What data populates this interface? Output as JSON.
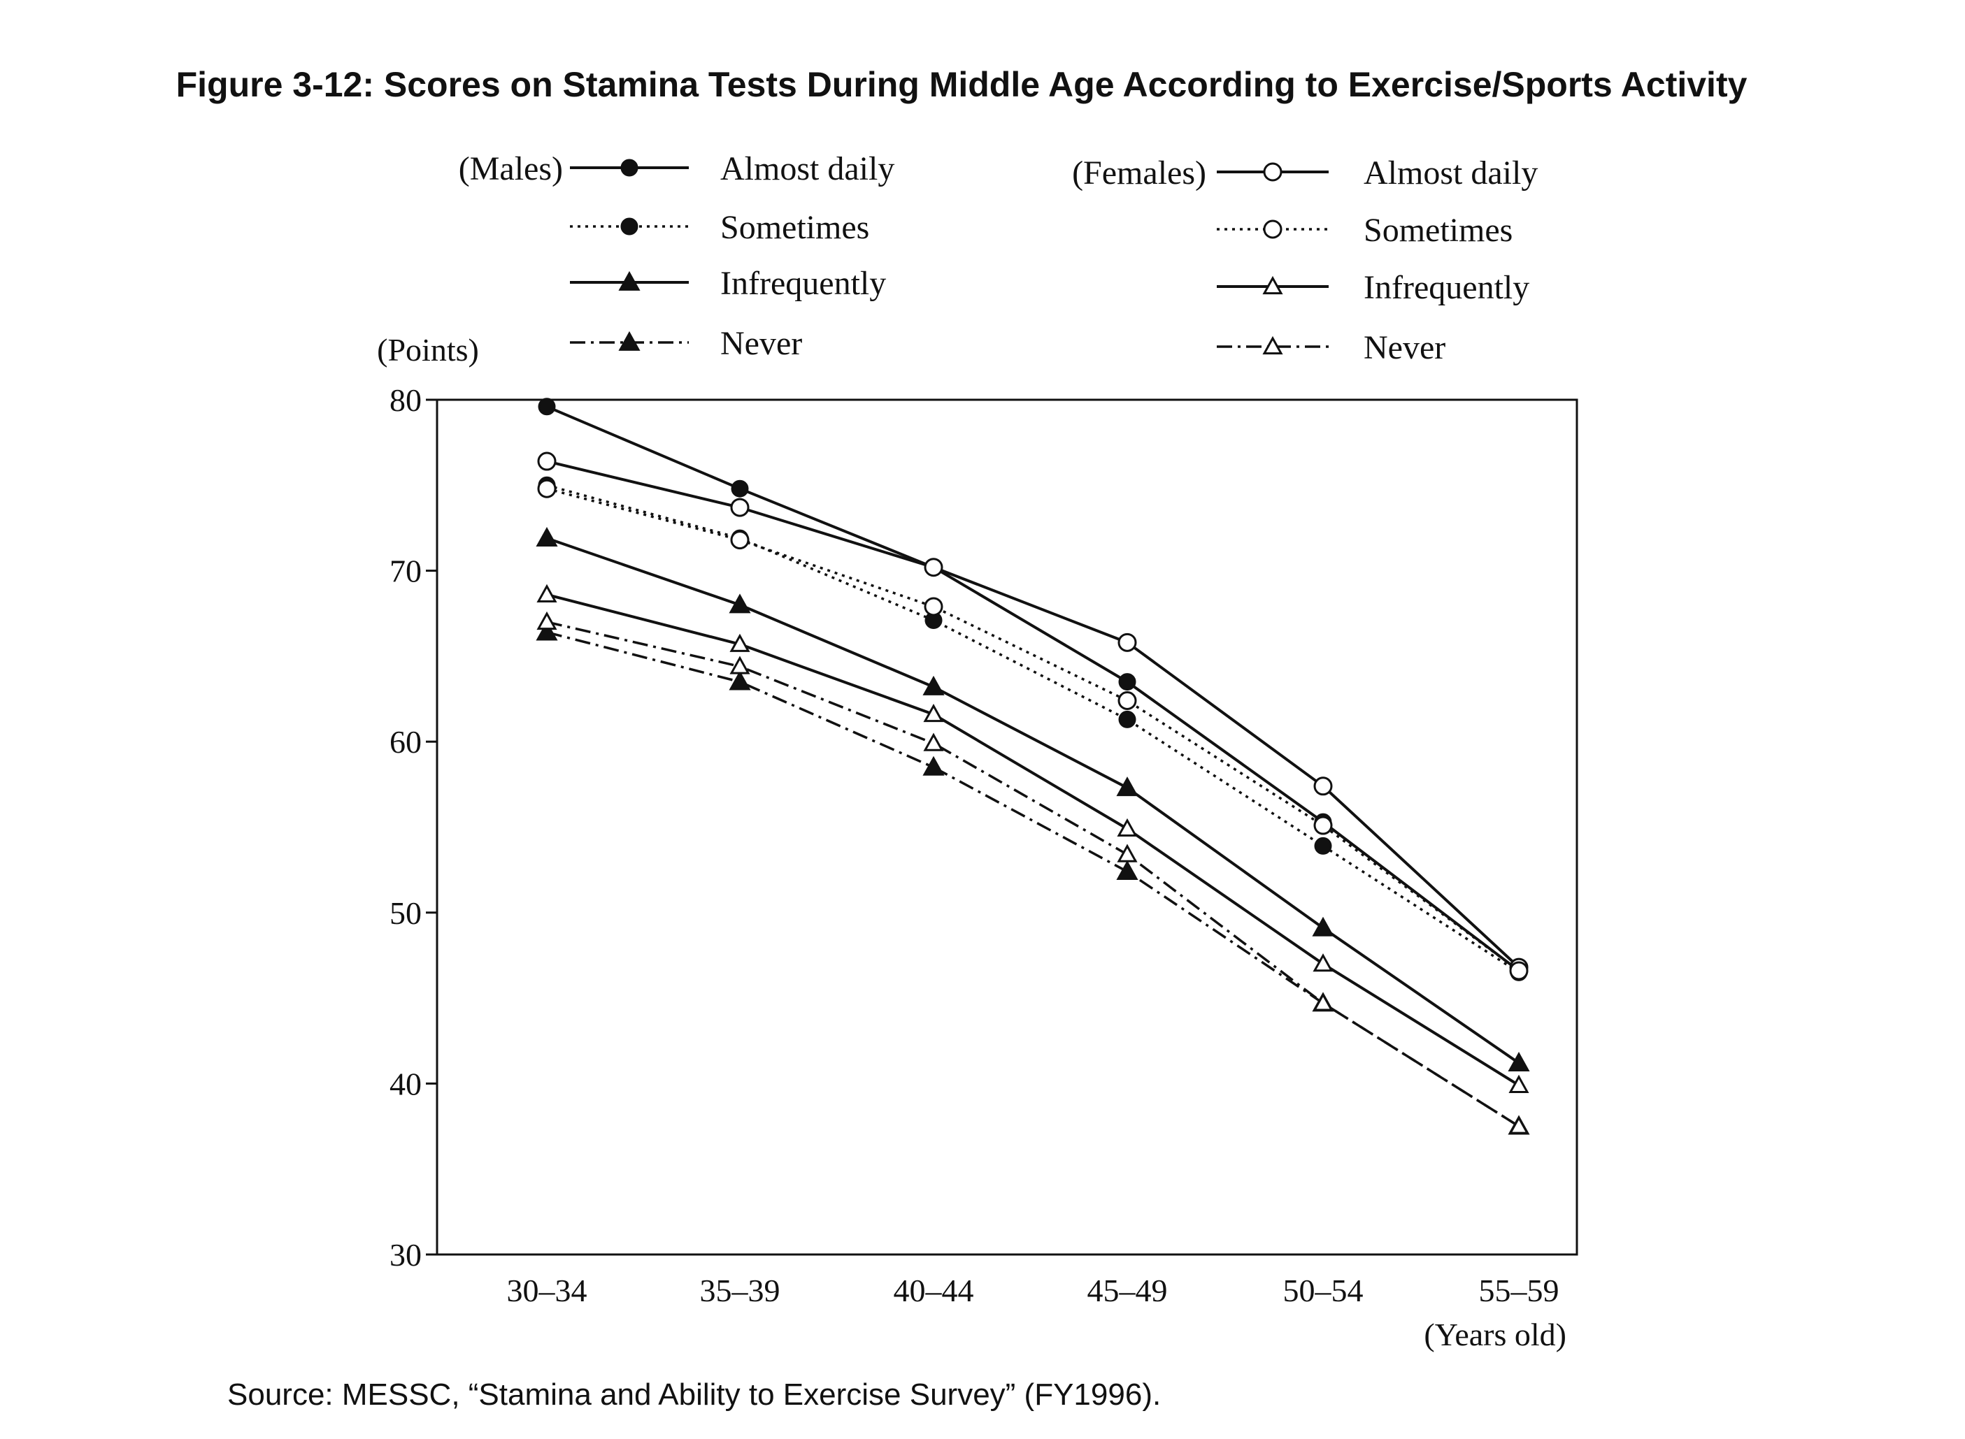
{
  "chart_data": {
    "type": "line",
    "title": "Figure 3-12: Scores on Stamina Tests During Middle Age According to Exercise/Sports Activity",
    "source": "Source: MESSC, “Stamina and Ability to Exercise Survey” (FY1996).",
    "ylabel": "(Points)",
    "xlabel": "(Years old)",
    "categories": [
      "30–34",
      "35–39",
      "40–44",
      "45–49",
      "50–54",
      "55–59"
    ],
    "ylim": [
      30,
      80
    ],
    "yticks": [
      30,
      40,
      50,
      60,
      70,
      80
    ],
    "grid": false,
    "legend_groups": [
      {
        "label": "(Males)",
        "marker": "filled"
      },
      {
        "label": "(Females)",
        "marker": "hollow"
      }
    ],
    "series": [
      {
        "name": "Almost daily",
        "group": "(Males)",
        "marker": "filled-circle",
        "line": "solid",
        "values": [
          79.6,
          74.8,
          70.2,
          63.5,
          55.3,
          46.6
        ]
      },
      {
        "name": "Sometimes",
        "group": "(Males)",
        "marker": "filled-circle",
        "line": "dotted",
        "values": [
          75.0,
          71.9,
          67.1,
          61.3,
          53.9,
          46.5
        ]
      },
      {
        "name": "Infrequently",
        "group": "(Males)",
        "marker": "filled-triangle",
        "line": "solid",
        "values": [
          71.9,
          68.0,
          63.2,
          57.3,
          49.1,
          41.2
        ]
      },
      {
        "name": "Never",
        "group": "(Males)",
        "marker": "filled-triangle",
        "line": "dashdot",
        "values": [
          66.4,
          63.5,
          58.5,
          52.4,
          44.7,
          37.5
        ]
      },
      {
        "name": "Almost daily",
        "group": "(Females)",
        "marker": "hollow-circle",
        "line": "solid",
        "values": [
          76.4,
          73.7,
          70.2,
          65.8,
          57.4,
          46.8
        ]
      },
      {
        "name": "Sometimes",
        "group": "(Females)",
        "marker": "hollow-circle",
        "line": "dotted",
        "values": [
          74.8,
          71.8,
          67.9,
          62.4,
          55.1,
          46.6
        ]
      },
      {
        "name": "Infrequently",
        "group": "(Females)",
        "marker": "hollow-triangle",
        "line": "solid",
        "values": [
          68.6,
          65.7,
          61.6,
          54.9,
          47.0,
          39.9
        ]
      },
      {
        "name": "Never",
        "group": "(Females)",
        "marker": "hollow-triangle",
        "line": "dashdot",
        "values": [
          67.0,
          64.4,
          59.9,
          53.4,
          44.7,
          37.5
        ]
      }
    ]
  }
}
